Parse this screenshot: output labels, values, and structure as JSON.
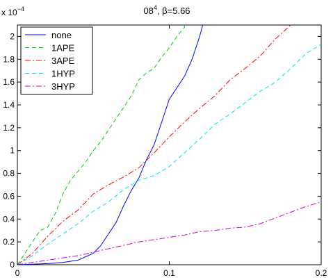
{
  "chart_data": {
    "type": "line",
    "title": {
      "prefix": "08",
      "superscript": "4",
      "suffix": ", β=5.66"
    },
    "xlabel": "",
    "ylabel": "",
    "xlim": [
      0,
      0.2
    ],
    "ylim": [
      0,
      2.1
    ],
    "y_multiplier": {
      "base": "x 10",
      "exponent": "−4"
    },
    "x_ticks": [
      0,
      0.1,
      0.2
    ],
    "x_tick_labels": [
      "0",
      "0.1",
      "0.2"
    ],
    "y_ticks": [
      0,
      0.2,
      0.4,
      0.6,
      0.8,
      1.0,
      1.2,
      1.4,
      1.6,
      1.8,
      2.0
    ],
    "y_tick_labels": [
      "0",
      "0.2",
      "0.4",
      "0.6",
      "0.8",
      "1",
      "1.2",
      "1.4",
      "1.6",
      "1.8",
      "2"
    ],
    "grid": false,
    "legend_position": "top-left",
    "series": [
      {
        "name": "none",
        "color": "#0000ff",
        "dash": "solid",
        "x": [
          0,
          0.01,
          0.02,
          0.03,
          0.04,
          0.045,
          0.05,
          0.055,
          0.06,
          0.065,
          0.07,
          0.075,
          0.08,
          0.085,
          0.09,
          0.095,
          0.1,
          0.105,
          0.11,
          0.115,
          0.12,
          0.122
        ],
        "y": [
          0,
          0.005,
          0.01,
          0.02,
          0.04,
          0.07,
          0.1,
          0.17,
          0.27,
          0.37,
          0.52,
          0.65,
          0.76,
          0.92,
          1.05,
          1.25,
          1.45,
          1.55,
          1.65,
          1.8,
          2.0,
          2.1
        ]
      },
      {
        "name": "1APE",
        "color": "#00cc00",
        "dash": "dashed",
        "x": [
          0,
          0.005,
          0.01,
          0.015,
          0.02,
          0.025,
          0.03,
          0.035,
          0.04,
          0.045,
          0.05,
          0.055,
          0.06,
          0.065,
          0.07,
          0.075,
          0.08,
          0.085,
          0.09,
          0.095,
          0.1,
          0.105,
          0.11,
          0.11
        ],
        "y": [
          0,
          0.1,
          0.2,
          0.3,
          0.33,
          0.45,
          0.62,
          0.74,
          0.82,
          0.9,
          1.0,
          1.08,
          1.18,
          1.28,
          1.38,
          1.48,
          1.62,
          1.68,
          1.72,
          1.82,
          1.9,
          2.0,
          2.08,
          2.1
        ]
      },
      {
        "name": "3APE",
        "color": "#ff0000",
        "dash": "dashdot",
        "x": [
          0,
          0.01,
          0.02,
          0.03,
          0.04,
          0.05,
          0.06,
          0.07,
          0.08,
          0.09,
          0.1,
          0.11,
          0.12,
          0.13,
          0.14,
          0.15,
          0.16,
          0.17,
          0.18
        ],
        "y": [
          0,
          0.1,
          0.25,
          0.38,
          0.48,
          0.62,
          0.7,
          0.77,
          0.85,
          0.98,
          1.12,
          1.25,
          1.37,
          1.48,
          1.62,
          1.72,
          1.83,
          1.98,
          2.1
        ]
      },
      {
        "name": "1HYP",
        "color": "#00e5e5",
        "dash": "dashed",
        "x": [
          0,
          0.01,
          0.02,
          0.03,
          0.04,
          0.05,
          0.06,
          0.07,
          0.08,
          0.09,
          0.1,
          0.11,
          0.12,
          0.13,
          0.14,
          0.15,
          0.16,
          0.17,
          0.18,
          0.19,
          0.2
        ],
        "y": [
          0,
          0.08,
          0.18,
          0.27,
          0.36,
          0.47,
          0.55,
          0.66,
          0.74,
          0.78,
          0.86,
          0.98,
          1.1,
          1.23,
          1.32,
          1.42,
          1.52,
          1.6,
          1.72,
          1.85,
          1.93
        ]
      },
      {
        "name": "3HYP",
        "color": "#cc00cc",
        "dash": "dashdot",
        "x": [
          0,
          0.01,
          0.02,
          0.03,
          0.04,
          0.05,
          0.06,
          0.07,
          0.08,
          0.09,
          0.1,
          0.11,
          0.12,
          0.13,
          0.14,
          0.15,
          0.16,
          0.17,
          0.18,
          0.19,
          0.2
        ],
        "y": [
          0,
          0.02,
          0.04,
          0.06,
          0.08,
          0.11,
          0.14,
          0.17,
          0.2,
          0.22,
          0.24,
          0.26,
          0.29,
          0.3,
          0.32,
          0.33,
          0.36,
          0.41,
          0.46,
          0.51,
          0.55
        ]
      }
    ]
  }
}
